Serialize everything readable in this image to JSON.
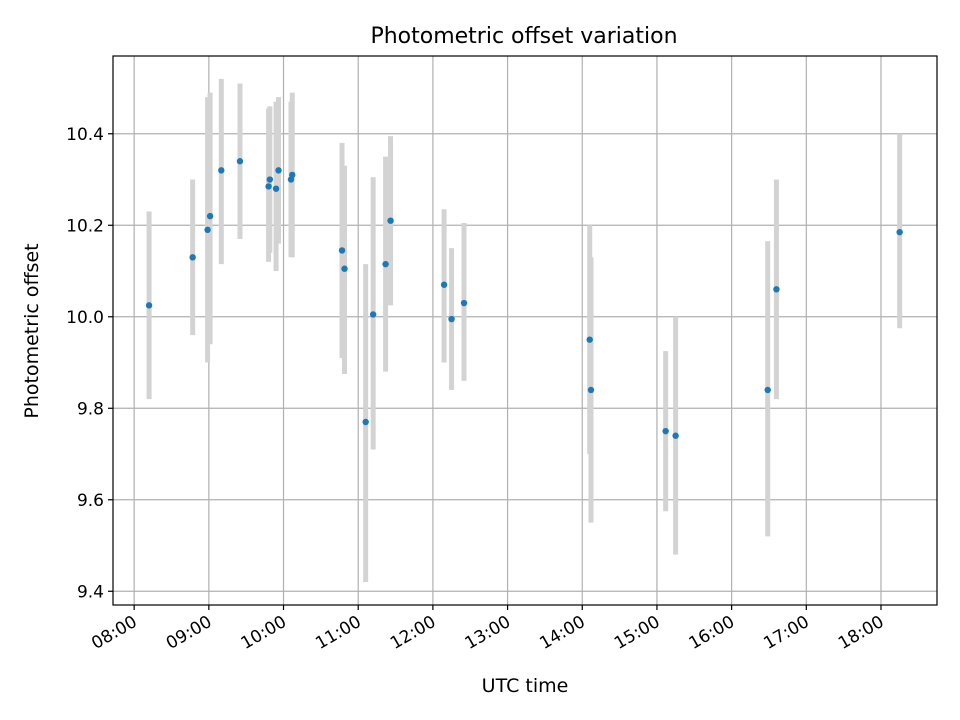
{
  "chart_data": {
    "type": "scatter",
    "title": "Photometric offset variation",
    "xlabel": "UTC time",
    "ylabel": "Photometric offset",
    "x_ticks": [
      "08:00",
      "09:00",
      "10:00",
      "11:00",
      "12:00",
      "13:00",
      "14:00",
      "15:00",
      "16:00",
      "17:00",
      "18:00"
    ],
    "y_ticks": [
      "9.4",
      "9.6",
      "9.8",
      "10.0",
      "10.2",
      "10.4"
    ],
    "xlim": [
      "07:43",
      "18:45"
    ],
    "ylim": [
      9.37,
      10.57
    ],
    "grid": true,
    "colors": {
      "marker": "#1f77b4",
      "errorbar": "#d3d3d3",
      "grid": "#b0b0b0"
    },
    "points": [
      {
        "x": "08:12",
        "y": 10.025,
        "ylo": 9.82,
        "yhi": 10.23
      },
      {
        "x": "08:47",
        "y": 10.13,
        "ylo": 9.96,
        "yhi": 10.3
      },
      {
        "x": "08:59",
        "y": 10.19,
        "ylo": 9.9,
        "yhi": 10.48
      },
      {
        "x": "09:01",
        "y": 10.22,
        "ylo": 9.94,
        "yhi": 10.49
      },
      {
        "x": "09:10",
        "y": 10.32,
        "ylo": 10.115,
        "yhi": 10.52
      },
      {
        "x": "09:25",
        "y": 10.34,
        "ylo": 10.17,
        "yhi": 10.51
      },
      {
        "x": "09:48",
        "y": 10.285,
        "ylo": 10.12,
        "yhi": 10.455
      },
      {
        "x": "09:49",
        "y": 10.3,
        "ylo": 10.14,
        "yhi": 10.46
      },
      {
        "x": "09:54",
        "y": 10.28,
        "ylo": 10.1,
        "yhi": 10.47
      },
      {
        "x": "09:56",
        "y": 10.32,
        "ylo": 10.16,
        "yhi": 10.48
      },
      {
        "x": "10:06",
        "y": 10.3,
        "ylo": 10.13,
        "yhi": 10.47
      },
      {
        "x": "10:07",
        "y": 10.31,
        "ylo": 10.13,
        "yhi": 10.49
      },
      {
        "x": "10:47",
        "y": 10.145,
        "ylo": 9.91,
        "yhi": 10.38
      },
      {
        "x": "10:49",
        "y": 10.105,
        "ylo": 9.875,
        "yhi": 10.33
      },
      {
        "x": "11:06",
        "y": 9.77,
        "ylo": 9.42,
        "yhi": 10.115
      },
      {
        "x": "11:12",
        "y": 10.005,
        "ylo": 9.71,
        "yhi": 10.305
      },
      {
        "x": "11:22",
        "y": 10.115,
        "ylo": 9.88,
        "yhi": 10.35
      },
      {
        "x": "11:26",
        "y": 10.21,
        "ylo": 10.025,
        "yhi": 10.395
      },
      {
        "x": "12:09",
        "y": 10.07,
        "ylo": 9.9,
        "yhi": 10.235
      },
      {
        "x": "12:15",
        "y": 9.995,
        "ylo": 9.84,
        "yhi": 10.15
      },
      {
        "x": "12:25",
        "y": 10.03,
        "ylo": 9.86,
        "yhi": 10.205
      },
      {
        "x": "14:06",
        "y": 9.95,
        "ylo": 9.7,
        "yhi": 10.2
      },
      {
        "x": "14:07",
        "y": 9.84,
        "ylo": 9.55,
        "yhi": 10.13
      },
      {
        "x": "15:07",
        "y": 9.75,
        "ylo": 9.575,
        "yhi": 9.925
      },
      {
        "x": "15:15",
        "y": 9.74,
        "ylo": 9.48,
        "yhi": 10.0
      },
      {
        "x": "16:29",
        "y": 9.84,
        "ylo": 9.52,
        "yhi": 10.165
      },
      {
        "x": "16:36",
        "y": 10.06,
        "ylo": 9.82,
        "yhi": 10.3
      },
      {
        "x": "18:15",
        "y": 10.185,
        "ylo": 9.975,
        "yhi": 10.4
      }
    ]
  }
}
